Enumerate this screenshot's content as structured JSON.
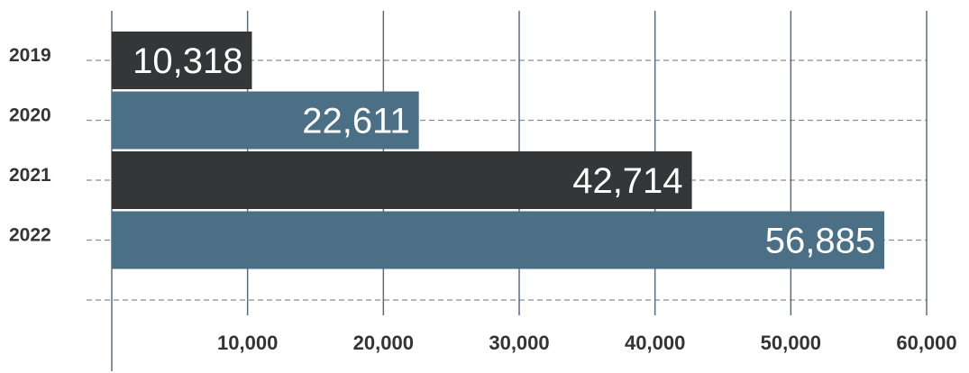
{
  "chart_data": {
    "type": "bar",
    "orientation": "horizontal",
    "categories": [
      "2019",
      "2020",
      "2021",
      "2022"
    ],
    "values": [
      10318,
      22611,
      42714,
      56885
    ],
    "value_labels": [
      "10,318",
      "22,611",
      "42,714",
      "56,885"
    ],
    "bar_colors": [
      "#353638",
      "#4b7085",
      "#353638",
      "#4b7085"
    ],
    "xlim": [
      0,
      60000
    ],
    "x_ticks": [
      10000,
      20000,
      30000,
      40000,
      50000,
      60000
    ],
    "x_tick_labels": [
      "10,000",
      "20,000",
      "30,000",
      "40,000",
      "50,000",
      "60,000"
    ],
    "title": "",
    "xlabel": "",
    "ylabel": "",
    "grid": true,
    "legend": false
  }
}
